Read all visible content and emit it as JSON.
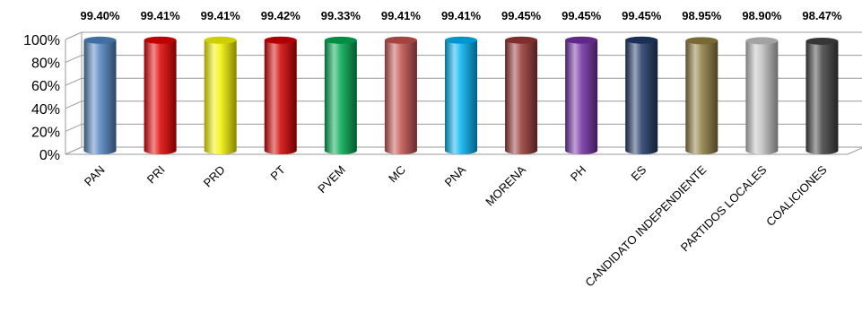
{
  "chart_data": {
    "type": "bar",
    "style": "3d-cylinder",
    "title": "",
    "xlabel": "",
    "ylabel": "",
    "ylim": [
      0,
      100
    ],
    "y_ticks": [
      "0%",
      "20%",
      "40%",
      "60%",
      "80%",
      "100%"
    ],
    "grid": true,
    "legend": "none",
    "categories": [
      "PAN",
      "PRI",
      "PRD",
      "PT",
      "PVEM",
      "MC",
      "PNA",
      "MORENA",
      "PH",
      "ES",
      "CANDIDATO INDEPENDIENTE",
      "PARTIDOS LOCALES",
      "COALICIONES"
    ],
    "values": [
      99.4,
      99.41,
      99.41,
      99.42,
      99.33,
      99.41,
      99.41,
      99.45,
      99.45,
      99.45,
      98.95,
      98.9,
      98.47
    ],
    "data_labels": [
      "99.40%",
      "99.41%",
      "99.41%",
      "99.42%",
      "99.33%",
      "99.41%",
      "99.41%",
      "99.45%",
      "99.45%",
      "99.45%",
      "98.95%",
      "98.90%",
      "98.47%"
    ],
    "colors": [
      "#4F81BD",
      "#E00000",
      "#F2F200",
      "#D00000",
      "#00A650",
      "#C0504D",
      "#00B0F0",
      "#943634",
      "#7030A0",
      "#1F3864",
      "#8C7A3F",
      "#BFBFBF",
      "#404040"
    ]
  }
}
